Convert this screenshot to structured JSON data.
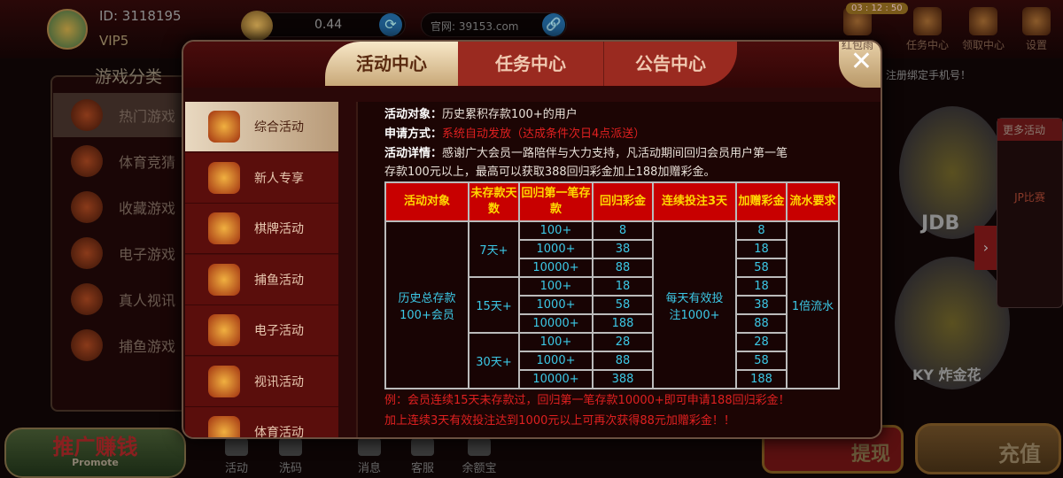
{
  "header": {
    "user_id": "ID: 3118195",
    "vip": "VIP5",
    "balance": "0.44",
    "site": "官网: 39153.com",
    "timer": "03 : 12 : 50",
    "icons": [
      {
        "label": "红包雨",
        "icon": "red-envelope-icon"
      },
      {
        "label": "任务中心",
        "icon": "treasure-icon"
      },
      {
        "label": "领取中心",
        "icon": "lion-icon"
      },
      {
        "label": "设置",
        "icon": "gear-icon"
      }
    ]
  },
  "notice": "注册绑定手机号！",
  "categories": {
    "title": "游戏分类",
    "items": [
      "热门游戏",
      "体育竞猜",
      "收藏游戏",
      "电子游戏",
      "真人视讯",
      "捕鱼游戏"
    ]
  },
  "right": {
    "more_title": "更多活动",
    "jp": "JP比赛",
    "game1": "JDB",
    "game2": "KY 炸金花"
  },
  "bottom": {
    "promo": "推广赚钱",
    "promo_sub": "Promote",
    "nav": [
      "活动",
      "洗码",
      "消息",
      "客服",
      "余额宝"
    ],
    "withdraw": "提现",
    "recharge": "充值"
  },
  "modal": {
    "tabs": [
      "活动中心",
      "任务中心",
      "公告中心"
    ],
    "close": "✕",
    "menu": [
      "综合活动",
      "新人专享",
      "棋牌活动",
      "捕鱼活动",
      "电子活动",
      "视讯活动",
      "体育活动"
    ],
    "content": {
      "target_label": "活动对象：",
      "target": "历史累积存款100+的用户",
      "apply_label": "申请方式：",
      "apply": "系统自动发放（达成条件次日4点派送）",
      "detail_label": "活动详情：",
      "detail1": "感谢广大会员一路陪伴与大力支持，凡活动期间回归会员用户第一笔",
      "detail2": "存款100元以上，最高可以获取388回归彩金加上188加赠彩金。",
      "table": {
        "headers": [
          "活动对象",
          "未存款天数",
          "回归第一笔存款",
          "回归彩金",
          "连续投注3天",
          "加赠彩金",
          "流水要求"
        ],
        "target": "历史总存款100+会员",
        "bet": "每天有效投注1000+",
        "turnover": "1倍流水",
        "groups": [
          {
            "days": "7天+",
            "rows": [
              [
                "100+",
                "8",
                "8"
              ],
              [
                "1000+",
                "38",
                "18"
              ],
              [
                "10000+",
                "88",
                "58"
              ]
            ]
          },
          {
            "days": "15天+",
            "rows": [
              [
                "100+",
                "18",
                "18"
              ],
              [
                "1000+",
                "58",
                "38"
              ],
              [
                "10000+",
                "188",
                "88"
              ]
            ]
          },
          {
            "days": "30天+",
            "rows": [
              [
                "100+",
                "28",
                "28"
              ],
              [
                "1000+",
                "88",
                "58"
              ],
              [
                "10000+",
                "388",
                "188"
              ]
            ]
          }
        ]
      },
      "note1": "例：会员连续15天未存款过，回归第一笔存款10000+即可申请188回归彩金！",
      "note2": "加上连续3天有效投注达到1000元以上可再次获得88元加赠彩金！！"
    }
  }
}
